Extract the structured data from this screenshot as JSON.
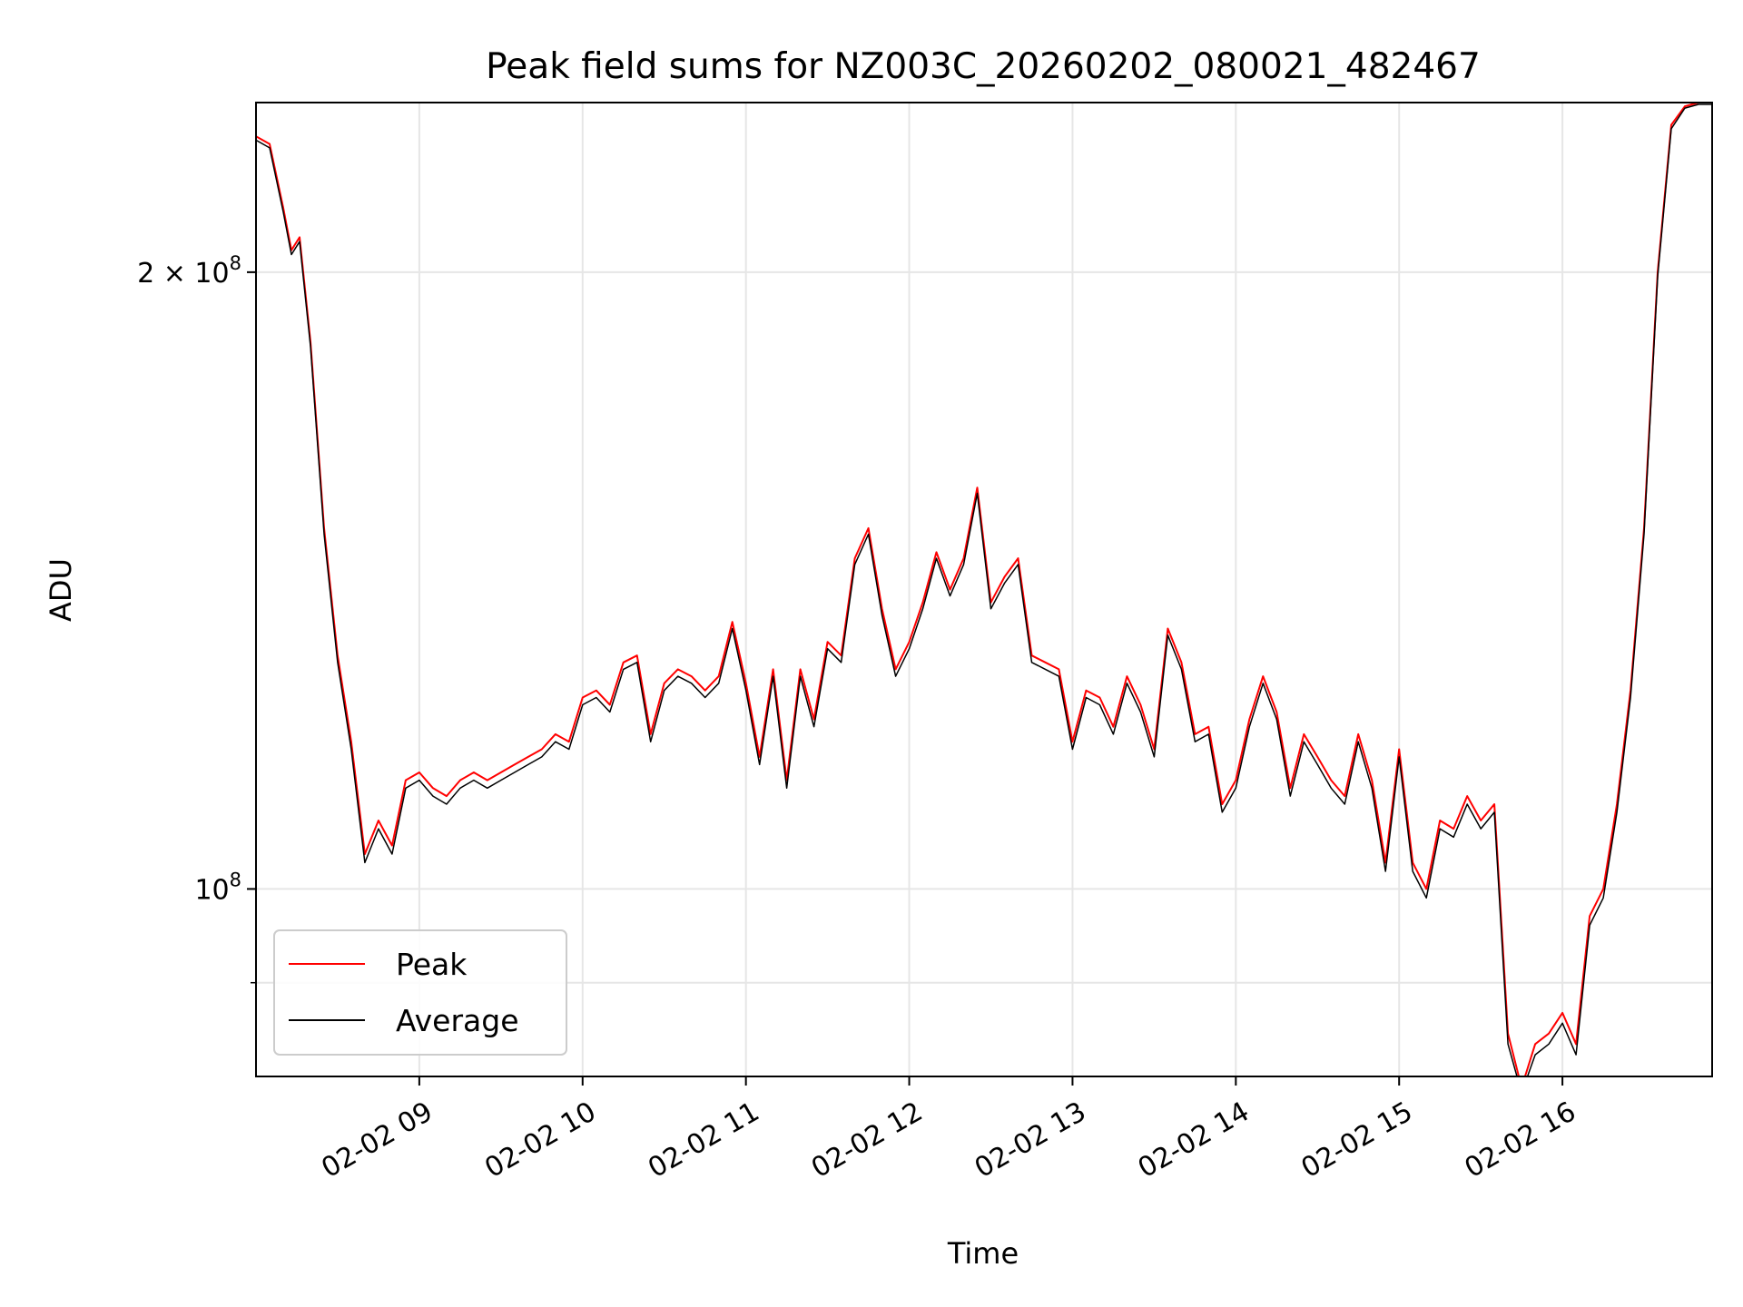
{
  "chart_data": {
    "type": "line",
    "title": "Peak field sums for NZ003C_20260202_080021_482467",
    "xlabel": "Time",
    "ylabel": "ADU",
    "yscale": "log",
    "grid": true,
    "legend_position": "lower-left",
    "xlim": [
      "2026-02-02 08:00",
      "2026-02-02 16:55"
    ],
    "ylim": [
      81000000,
      242000000
    ],
    "x_ticks": [
      {
        "value": "2026-02-02 09:00",
        "label": "02-02 09"
      },
      {
        "value": "2026-02-02 10:00",
        "label": "02-02 10"
      },
      {
        "value": "2026-02-02 11:00",
        "label": "02-02 11"
      },
      {
        "value": "2026-02-02 12:00",
        "label": "02-02 12"
      },
      {
        "value": "2026-02-02 13:00",
        "label": "02-02 13"
      },
      {
        "value": "2026-02-02 14:00",
        "label": "02-02 14"
      },
      {
        "value": "2026-02-02 15:00",
        "label": "02-02 15"
      },
      {
        "value": "2026-02-02 16:00",
        "label": "02-02 16"
      }
    ],
    "y_major_ticks": [
      {
        "value": 100000000,
        "base": "10",
        "exp": "8",
        "prefix": ""
      },
      {
        "value": 200000000,
        "base": "10",
        "exp": "8",
        "prefix": "2 × "
      }
    ],
    "y_minor_ticks": [
      90000000
    ],
    "x": [
      "08:00",
      "08:05",
      "08:10",
      "08:13",
      "08:16",
      "08:20",
      "08:25",
      "08:30",
      "08:35",
      "08:40",
      "08:45",
      "08:50",
      "08:55",
      "09:00",
      "09:05",
      "09:10",
      "09:15",
      "09:20",
      "09:25",
      "09:30",
      "09:35",
      "09:40",
      "09:45",
      "09:50",
      "09:55",
      "10:00",
      "10:05",
      "10:10",
      "10:15",
      "10:20",
      "10:25",
      "10:30",
      "10:35",
      "10:40",
      "10:45",
      "10:50",
      "10:55",
      "11:00",
      "11:05",
      "11:10",
      "11:15",
      "11:20",
      "11:25",
      "11:30",
      "11:35",
      "11:40",
      "11:45",
      "11:50",
      "11:55",
      "12:00",
      "12:05",
      "12:10",
      "12:15",
      "12:20",
      "12:25",
      "12:30",
      "12:35",
      "12:40",
      "12:45",
      "12:50",
      "12:55",
      "13:00",
      "13:05",
      "13:10",
      "13:15",
      "13:20",
      "13:25",
      "13:30",
      "13:35",
      "13:40",
      "13:45",
      "13:50",
      "13:55",
      "14:00",
      "14:05",
      "14:10",
      "14:15",
      "14:20",
      "14:25",
      "14:30",
      "14:35",
      "14:40",
      "14:45",
      "14:50",
      "14:55",
      "15:00",
      "15:05",
      "15:10",
      "15:15",
      "15:20",
      "15:25",
      "15:30",
      "15:35",
      "15:40",
      "15:45",
      "15:50",
      "15:55",
      "16:00",
      "16:05",
      "16:10",
      "16:15",
      "16:20",
      "16:25",
      "16:30",
      "16:35",
      "16:40",
      "16:45",
      "16:50",
      "16:55"
    ],
    "series": [
      {
        "name": "Peak",
        "color": "#ff0000",
        "values": [
          233000000,
          231000000,
          215000000,
          205000000,
          208000000,
          185000000,
          150000000,
          130000000,
          118000000,
          104000000,
          108000000,
          105000000,
          113000000,
          114000000,
          112000000,
          111000000,
          113000000,
          114000000,
          113000000,
          114000000,
          115000000,
          116000000,
          117000000,
          119000000,
          118000000,
          124000000,
          125000000,
          123000000,
          129000000,
          130000000,
          119000000,
          126000000,
          128000000,
          127000000,
          125000000,
          127000000,
          135000000,
          126000000,
          116000000,
          128000000,
          113000000,
          128000000,
          121000000,
          132000000,
          130000000,
          145000000,
          150000000,
          137000000,
          128000000,
          132000000,
          138000000,
          146000000,
          140000000,
          145000000,
          157000000,
          138000000,
          142000000,
          145000000,
          130000000,
          129000000,
          128000000,
          118000000,
          125000000,
          124000000,
          120000000,
          127000000,
          123000000,
          117000000,
          134000000,
          129000000,
          119000000,
          120000000,
          110000000,
          113000000,
          121000000,
          127000000,
          122000000,
          112000000,
          119000000,
          116000000,
          113000000,
          111000000,
          119000000,
          113000000,
          103000000,
          117000000,
          103000000,
          100000000,
          108000000,
          107000000,
          111000000,
          108000000,
          110000000,
          85000000,
          80000000,
          84000000,
          85000000,
          87000000,
          84000000,
          97000000,
          100000000,
          110000000,
          125000000,
          150000000,
          200000000,
          236000000,
          241000000,
          242000000,
          242000000
        ]
      },
      {
        "name": "Average",
        "color": "#000000",
        "values": [
          232000000,
          230000000,
          214000000,
          204000000,
          207000000,
          184000000,
          149000000,
          129000000,
          117000000,
          103000000,
          107000000,
          104000000,
          112000000,
          113000000,
          111000000,
          110000000,
          112000000,
          113000000,
          112000000,
          113000000,
          114000000,
          115000000,
          116000000,
          118000000,
          117000000,
          123000000,
          124000000,
          122000000,
          128000000,
          129000000,
          118000000,
          125000000,
          127000000,
          126000000,
          124000000,
          126000000,
          134000000,
          125000000,
          115000000,
          127000000,
          112000000,
          127000000,
          120000000,
          131000000,
          129000000,
          144000000,
          149000000,
          136000000,
          127000000,
          131000000,
          137000000,
          145000000,
          139000000,
          144000000,
          156000000,
          137000000,
          141000000,
          144000000,
          129000000,
          128000000,
          127000000,
          117000000,
          124000000,
          123000000,
          119000000,
          126000000,
          122000000,
          116000000,
          133000000,
          128000000,
          118000000,
          119000000,
          109000000,
          112000000,
          120000000,
          126000000,
          121000000,
          111000000,
          118000000,
          115000000,
          112000000,
          110000000,
          118000000,
          112000000,
          102000000,
          116000000,
          102000000,
          99000000,
          107000000,
          106000000,
          110000000,
          107000000,
          109000000,
          84000000,
          79500000,
          83000000,
          84000000,
          86000000,
          83000000,
          96000000,
          99000000,
          109000000,
          124000000,
          149000000,
          199000000,
          235000000,
          240500000,
          241500000,
          241500000
        ]
      }
    ]
  }
}
